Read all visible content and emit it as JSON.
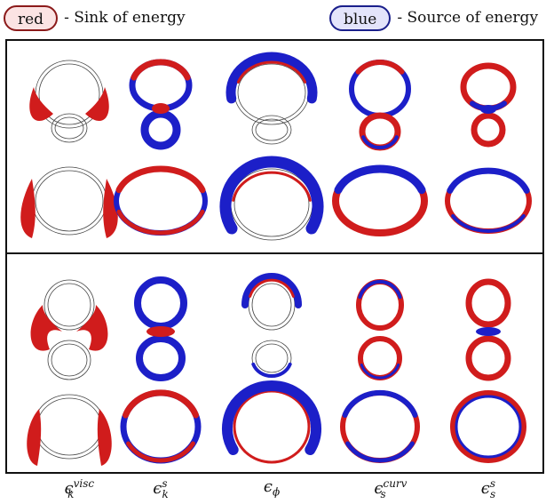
{
  "legend": {
    "red_label": "red",
    "red_text": "- Sink of energy",
    "blue_label": "blue",
    "blue_text": "- Source of energy"
  },
  "colors": {
    "sink": "#d01c1c",
    "source": "#1c1fc8",
    "outline": "#444444"
  },
  "columns": [
    {
      "symbol": "ϵ",
      "sub": "k",
      "sup": "visc"
    },
    {
      "symbol": "ϵ",
      "sub": "k",
      "sup": "s"
    },
    {
      "symbol": "ϵ",
      "sub": "ϕ",
      "sup": ""
    },
    {
      "symbol": "ϵ",
      "sub": "s",
      "sup": "curv"
    },
    {
      "symbol": "ϵ",
      "sub": "s",
      "sup": "s"
    }
  ]
}
